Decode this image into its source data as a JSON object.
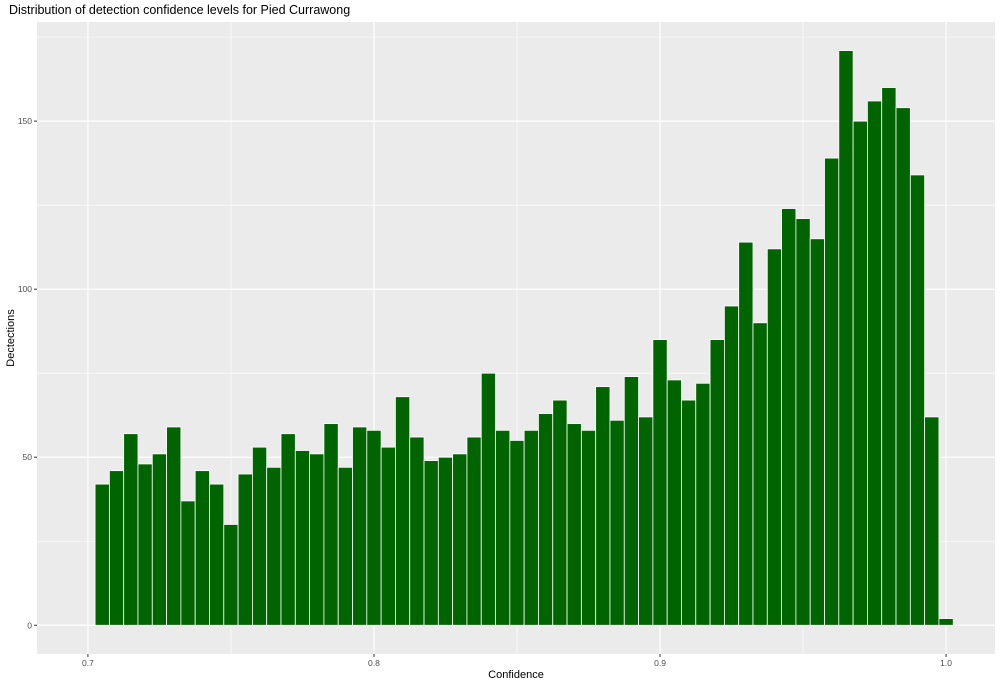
{
  "chart_data": {
    "type": "bar",
    "title": "Distribution of detection confidence levels for Pied Currawong",
    "xlabel": "Confidence",
    "ylabel": "Dectections",
    "xlim": [
      0.6822,
      1.0171
    ],
    "ylim": [
      -8.55,
      179.5
    ],
    "x_ticks": [
      0.7,
      0.8,
      0.9,
      1.0
    ],
    "x_tick_labels": [
      "0.7",
      "0.8",
      "0.9",
      "1.0"
    ],
    "y_ticks": [
      0,
      50,
      100,
      150
    ],
    "y_tick_labels": [
      "0",
      "50",
      "100",
      "150"
    ],
    "bin_width": 0.005,
    "bin_centers": [
      0.705,
      0.71,
      0.715,
      0.72,
      0.725,
      0.73,
      0.735,
      0.74,
      0.745,
      0.75,
      0.755,
      0.76,
      0.765,
      0.77,
      0.775,
      0.78,
      0.785,
      0.79,
      0.795,
      0.8,
      0.805,
      0.81,
      0.815,
      0.82,
      0.825,
      0.83,
      0.835,
      0.84,
      0.845,
      0.85,
      0.855,
      0.86,
      0.865,
      0.87,
      0.875,
      0.88,
      0.885,
      0.89,
      0.895,
      0.9,
      0.905,
      0.91,
      0.915,
      0.92,
      0.925,
      0.93,
      0.935,
      0.94,
      0.945,
      0.95,
      0.955,
      0.96,
      0.965,
      0.97,
      0.975,
      0.98,
      0.985,
      0.99,
      0.995,
      1.0
    ],
    "values": [
      42,
      46,
      57,
      48,
      51,
      59,
      37,
      46,
      42,
      30,
      45,
      53,
      47,
      57,
      52,
      51,
      60,
      47,
      59,
      58,
      53,
      68,
      56,
      49,
      50,
      51,
      56,
      75,
      58,
      55,
      58,
      63,
      67,
      60,
      58,
      71,
      61,
      74,
      62,
      85,
      73,
      67,
      72,
      85,
      95,
      114,
      90,
      112,
      124,
      121,
      115,
      139,
      171,
      150,
      156,
      160,
      154,
      134,
      62,
      2
    ],
    "bar_color": "#006400",
    "panel_background": "#ebebeb",
    "grid": true,
    "grid_color": "#ffffff"
  }
}
